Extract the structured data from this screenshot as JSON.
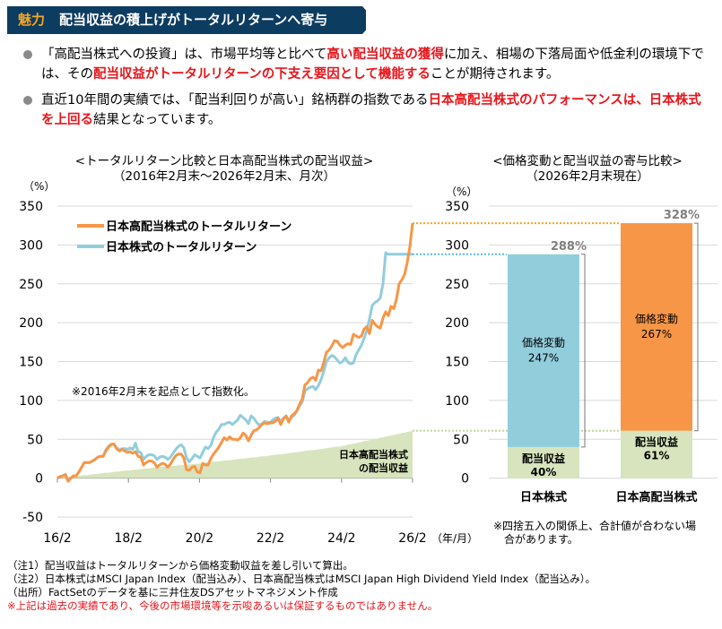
{
  "header": {
    "tag": "魅力",
    "title": "配当収益の積上げがトータルリターンへ寄与",
    "colors": {
      "background": "#0d3c61",
      "tag": "#f5a623",
      "title": "#ffffff"
    }
  },
  "bullets": [
    {
      "segments": [
        {
          "text": "「高配当株式への投資」は、市場平均等と比べて",
          "emphasis": false
        },
        {
          "text": "高い配当収益の獲得",
          "emphasis": true
        },
        {
          "text": "に加え、相場の下落局面や低金利の環境下では、その",
          "emphasis": false
        },
        {
          "text": "配当収益がトータルリターンの下支え要因として機能する",
          "emphasis": true
        },
        {
          "text": "ことが期待されます。",
          "emphasis": false
        }
      ]
    },
    {
      "segments": [
        {
          "text": "直近10年間の実績では、「配当利回りが高い」銘柄群の指数である",
          "emphasis": false
        },
        {
          "text": "日本高配当株式のパフォーマンスは、日本株式を上回る",
          "emphasis": true
        },
        {
          "text": "結果となっています。",
          "emphasis": false
        }
      ]
    }
  ],
  "chart_data": [
    {
      "type": "line",
      "title": "<トータルリターン比較と日本高配当株式の配当収益>",
      "subtitle": "（2016年2月末～2026年2月末、月次）",
      "ylabel": "（%）",
      "xlabel": "（年/月）",
      "ylim": [
        -50,
        350
      ],
      "yticks": [
        -50,
        0,
        50,
        100,
        150,
        200,
        250,
        300,
        350
      ],
      "xticks": [
        "16/2",
        "18/2",
        "20/2",
        "22/2",
        "24/2",
        "26/2"
      ],
      "grid": true,
      "legend_position": "top-left",
      "annotation": "※2016年2月末を起点として指数化。",
      "area_label": [
        "日本高配当株式",
        "の配当収益"
      ],
      "series": [
        {
          "name": "日本高配当株式のトータルリターン",
          "color": "#f79646",
          "values": [
            0,
            2,
            3,
            4,
            -4,
            0,
            3,
            3,
            8,
            14,
            20,
            20,
            20,
            22,
            24,
            27,
            28,
            28,
            35,
            40,
            43,
            44,
            38,
            35,
            37,
            35,
            33,
            34,
            32,
            34,
            28,
            27,
            17,
            20,
            22,
            22,
            20,
            14,
            17,
            19,
            18,
            14,
            18,
            24,
            29,
            31,
            31,
            26,
            11,
            10,
            14,
            15,
            8,
            7,
            19,
            17,
            17,
            25,
            31,
            35,
            40,
            46,
            52,
            49,
            53,
            50,
            50,
            49,
            52,
            58,
            55,
            48,
            55,
            61,
            62,
            65,
            69,
            71,
            70,
            72,
            71,
            73,
            77,
            69,
            76,
            80,
            72,
            80,
            83,
            87,
            95,
            102,
            120,
            123,
            128,
            130,
            126,
            139,
            138,
            149,
            162,
            165,
            170,
            177,
            176,
            171,
            168,
            171,
            173,
            172,
            185,
            183,
            181,
            183,
            192,
            195,
            186,
            203,
            198,
            195,
            193,
            206,
            214,
            209,
            221,
            218,
            230,
            250,
            255,
            262,
            277,
            298,
            328
          ]
        },
        {
          "name": "日本株式のトータルリターン",
          "color": "#92cddc",
          "values": [
            0,
            2,
            3,
            5,
            -4,
            0,
            3,
            3,
            8,
            14,
            20,
            20,
            20,
            22,
            24,
            27,
            28,
            28,
            36,
            41,
            44,
            44,
            39,
            36,
            38,
            38,
            37,
            39,
            37,
            45,
            34,
            33,
            24,
            28,
            30,
            30,
            29,
            24,
            27,
            28,
            27,
            24,
            27,
            32,
            37,
            41,
            43,
            39,
            26,
            21,
            25,
            30,
            28,
            26,
            33,
            40,
            38,
            42,
            52,
            59,
            63,
            69,
            69,
            71,
            72,
            69,
            72,
            75,
            81,
            78,
            75,
            70,
            80,
            77,
            72,
            68,
            70,
            73,
            72,
            70,
            75,
            77,
            78,
            73,
            77,
            80,
            74,
            78,
            81,
            86,
            93,
            98,
            112,
            115,
            117,
            118,
            114,
            119,
            127,
            137,
            150,
            155,
            158,
            156,
            152,
            148,
            150,
            155,
            149,
            147,
            148,
            159,
            165,
            171,
            180,
            190,
            205,
            222,
            226,
            228,
            232,
            250,
            290,
            288,
            288,
            288,
            288,
            288,
            288,
            288,
            288,
            288,
            288
          ]
        },
        {
          "name": "日本高配当株式の配当収益",
          "color": "#d7e4bd",
          "type": "area",
          "values_by_year": {
            "16/2": 0,
            "18/2": 10,
            "20/2": 19,
            "22/2": 29,
            "24/2": 41,
            "26/2": 61
          }
        }
      ],
      "reference_lines": [
        {
          "value": 328,
          "color": "#f5a623",
          "style": "dotted"
        },
        {
          "value": 288,
          "color": "#5bbce4",
          "style": "dotted"
        },
        {
          "value": 61,
          "color": "#9bbb59",
          "style": "dotted"
        }
      ]
    },
    {
      "type": "bar",
      "stacked": true,
      "title": "<価格変動と配当収益の寄与比較>",
      "subtitle": "（2026年2月末現在）",
      "ylabel": "（%）",
      "ylim": [
        0,
        350
      ],
      "yticks": [
        0,
        50,
        100,
        150,
        200,
        250,
        300,
        350
      ],
      "categories": [
        "日本株式",
        "日本高配当株式"
      ],
      "totals": [
        "288%",
        "328%"
      ],
      "series": [
        {
          "name": "配当収益",
          "values": [
            40,
            61
          ],
          "labels": [
            "40%",
            "61%"
          ],
          "color": "#d7e4bd"
        },
        {
          "name": "価格変動",
          "values": [
            247,
            267
          ],
          "labels": [
            "247%",
            "267%"
          ],
          "colors": [
            "#92cddc",
            "#f79646"
          ]
        }
      ],
      "total_values": [
        288,
        328
      ],
      "note": [
        "※四捨五入の関係上、合計値が合わない場",
        "合があります。"
      ]
    }
  ],
  "notes": [
    "（注1）配当収益はトータルリターンから価格変動収益を差し引いて算出。",
    "（注2）日本株式はMSCI Japan Index（配当込み）、日本高配当株式はMSCI Japan High Dividend Yield Index（配当込み）。",
    "（出所）FactSetのデータを基に三井住友DSアセットマネジメント作成"
  ],
  "warning": "※上記は過去の実績であり、今後の市場環境等を示唆あるいは保証するものではありません。"
}
